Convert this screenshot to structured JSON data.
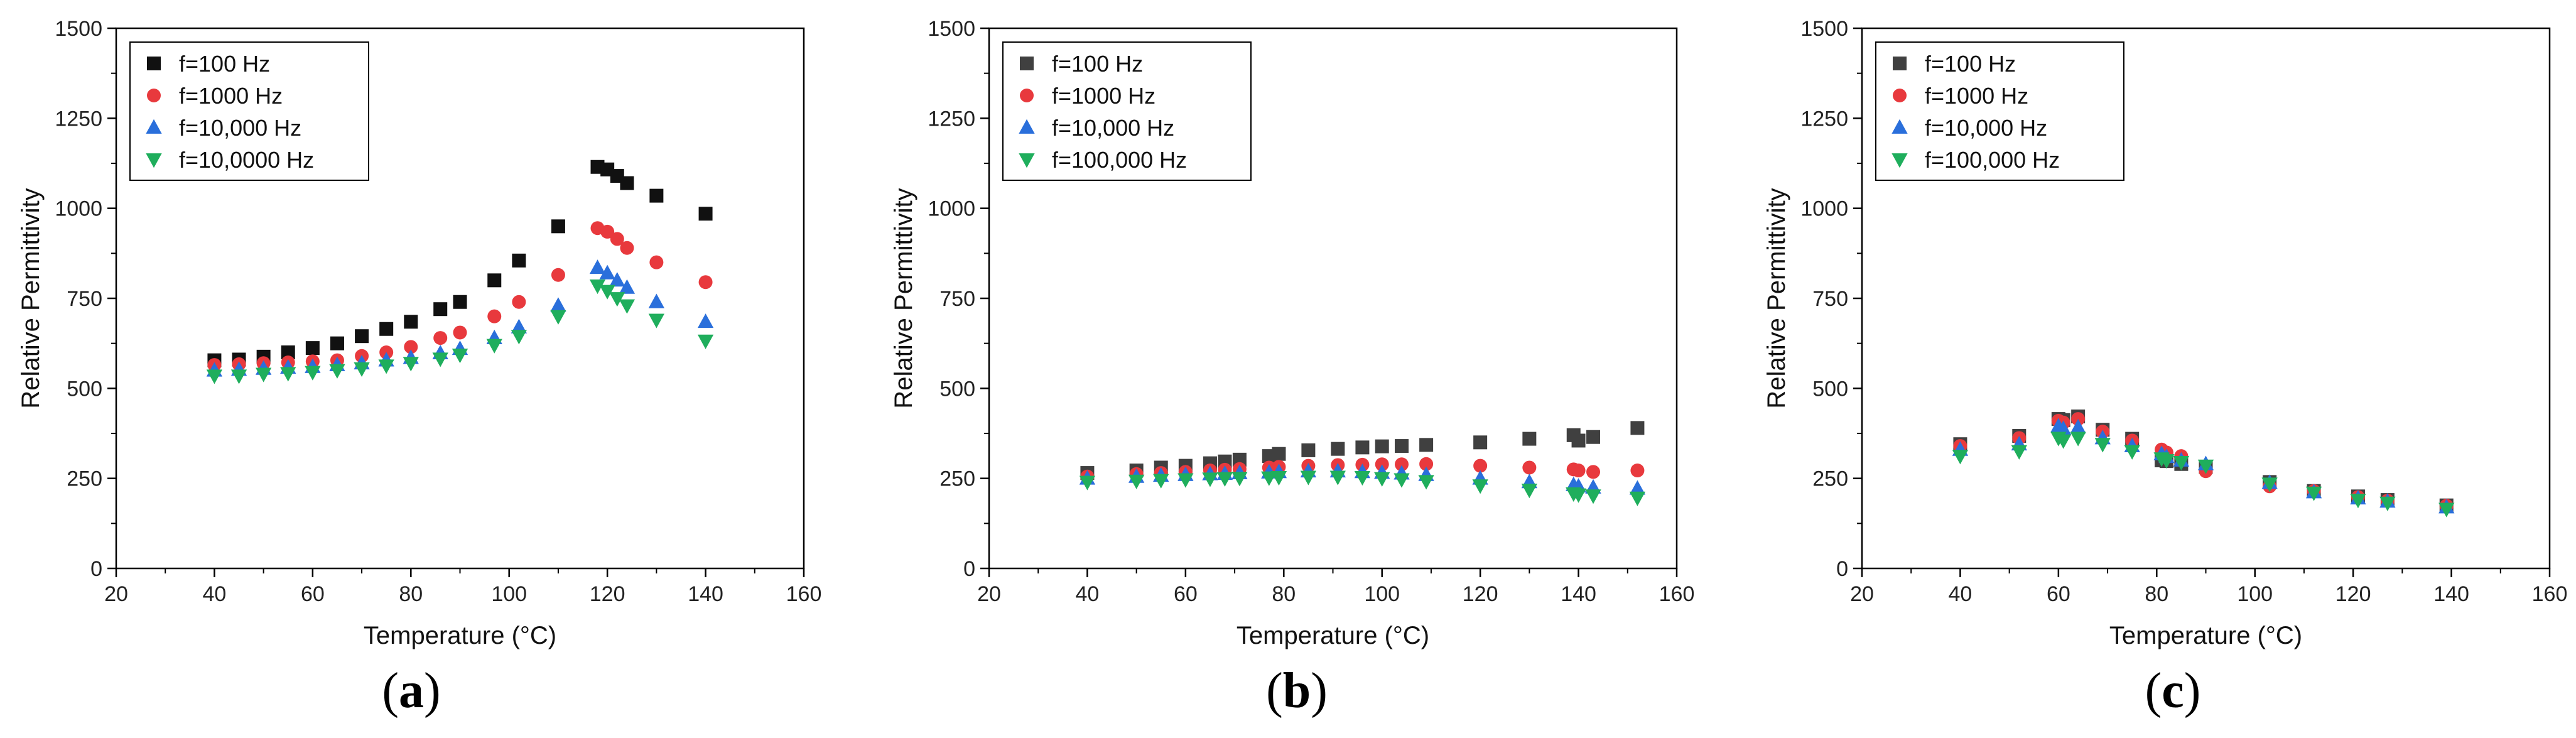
{
  "colors": {
    "black": "#111111",
    "gray": "#404040",
    "red": "#e8393d",
    "blue": "#2a6fdb",
    "green": "#1fae5c"
  },
  "chart_data": [
    {
      "type": "scatter",
      "panel_label": "a",
      "xlabel": "Temperature (°C)",
      "ylabel": "Relative Permittivity",
      "xlim": [
        20,
        160
      ],
      "ylim": [
        0,
        1500
      ],
      "xticks": [
        "20",
        "40",
        "60",
        "80",
        "100",
        "120",
        "140",
        "160"
      ],
      "yticks": [
        "0",
        "250",
        "500",
        "750",
        "1000",
        "1250",
        "1500"
      ],
      "legend_position": "top-left",
      "series": [
        {
          "name": "f=100 Hz",
          "marker": "square",
          "color": "#111111",
          "x": [
            40,
            45,
            50,
            55,
            60,
            65,
            70,
            75,
            80,
            86,
            90,
            97,
            102,
            110,
            118,
            120,
            122,
            124,
            130,
            140
          ],
          "y": [
            578,
            580,
            588,
            600,
            612,
            625,
            645,
            665,
            685,
            720,
            740,
            800,
            855,
            950,
            1115,
            1108,
            1090,
            1070,
            1035,
            985
          ]
        },
        {
          "name": "f=1000 Hz",
          "marker": "circle",
          "color": "#e8393d",
          "x": [
            40,
            45,
            50,
            55,
            60,
            65,
            70,
            75,
            80,
            86,
            90,
            97,
            102,
            110,
            118,
            120,
            122,
            124,
            130,
            140
          ],
          "y": [
            565,
            567,
            570,
            572,
            575,
            578,
            590,
            600,
            615,
            640,
            655,
            700,
            740,
            815,
            945,
            935,
            915,
            890,
            850,
            795
          ]
        },
        {
          "name": "f=10,000 Hz",
          "marker": "triangle-up",
          "color": "#2a6fdb",
          "x": [
            40,
            45,
            50,
            55,
            60,
            65,
            70,
            75,
            80,
            86,
            90,
            97,
            102,
            110,
            118,
            120,
            122,
            124,
            130,
            140
          ],
          "y": [
            550,
            552,
            555,
            558,
            560,
            565,
            570,
            578,
            585,
            598,
            610,
            640,
            670,
            730,
            835,
            820,
            800,
            780,
            740,
            685
          ]
        },
        {
          "name": "f=10,0000 Hz",
          "marker": "triangle-down",
          "color": "#1fae5c",
          "x": [
            40,
            45,
            50,
            55,
            60,
            65,
            70,
            75,
            80,
            86,
            90,
            97,
            102,
            110,
            118,
            120,
            122,
            124,
            130,
            140
          ],
          "y": [
            535,
            535,
            540,
            542,
            545,
            550,
            555,
            563,
            570,
            582,
            593,
            620,
            645,
            700,
            785,
            770,
            750,
            730,
            690,
            632
          ]
        }
      ]
    },
    {
      "type": "scatter",
      "panel_label": "b",
      "xlabel": "Temperature (°C)",
      "ylabel": "Relative Permittivity",
      "xlim": [
        20,
        160
      ],
      "ylim": [
        0,
        1500
      ],
      "xticks": [
        "20",
        "40",
        "60",
        "80",
        "100",
        "120",
        "140",
        "160"
      ],
      "yticks": [
        "0",
        "250",
        "500",
        "750",
        "1000",
        "1250",
        "1500"
      ],
      "legend_position": "top-left",
      "series": [
        {
          "name": "f=100 Hz",
          "marker": "square",
          "color": "#404040",
          "x": [
            40,
            50,
            55,
            60,
            65,
            68,
            71,
            77,
            79,
            85,
            91,
            96,
            100,
            104,
            109,
            120,
            130,
            139,
            140,
            143,
            152
          ],
          "y": [
            265,
            272,
            280,
            285,
            292,
            297,
            302,
            312,
            318,
            328,
            332,
            336,
            339,
            340,
            343,
            350,
            360,
            370,
            355,
            365,
            390
          ]
        },
        {
          "name": "f=1000 Hz",
          "marker": "circle",
          "color": "#e8393d",
          "x": [
            40,
            50,
            55,
            60,
            65,
            68,
            71,
            77,
            79,
            85,
            91,
            96,
            100,
            104,
            109,
            120,
            130,
            139,
            140,
            143,
            152
          ],
          "y": [
            255,
            262,
            265,
            268,
            272,
            274,
            276,
            280,
            282,
            285,
            287,
            288,
            289,
            289,
            290,
            285,
            280,
            275,
            272,
            268,
            272
          ]
        },
        {
          "name": "f=10,000 Hz",
          "marker": "triangle-up",
          "color": "#2a6fdb",
          "x": [
            40,
            50,
            55,
            60,
            65,
            68,
            71,
            77,
            79,
            85,
            91,
            96,
            100,
            104,
            109,
            120,
            130,
            139,
            140,
            143,
            152
          ],
          "y": [
            250,
            255,
            258,
            260,
            262,
            263,
            265,
            267,
            268,
            270,
            270,
            268,
            266,
            264,
            260,
            250,
            240,
            232,
            228,
            225,
            222
          ]
        },
        {
          "name": "f=100,000 Hz",
          "marker": "triangle-down",
          "color": "#1fae5c",
          "x": [
            40,
            50,
            55,
            60,
            65,
            68,
            71,
            77,
            79,
            85,
            91,
            96,
            100,
            104,
            109,
            120,
            130,
            139,
            140,
            143,
            152
          ],
          "y": [
            240,
            243,
            245,
            247,
            249,
            250,
            251,
            252,
            253,
            254,
            254,
            253,
            250,
            247,
            242,
            230,
            218,
            208,
            205,
            202,
            196
          ]
        }
      ]
    },
    {
      "type": "scatter",
      "panel_label": "c",
      "xlabel": "Temperature (°C)",
      "ylabel": "Relative Permittivity",
      "xlim": [
        20,
        160
      ],
      "ylim": [
        0,
        1500
      ],
      "xticks": [
        "20",
        "40",
        "60",
        "80",
        "100",
        "120",
        "140",
        "160"
      ],
      "yticks": [
        "0",
        "250",
        "500",
        "750",
        "1000",
        "1250",
        "1500"
      ],
      "legend_position": "top-left",
      "series": [
        {
          "name": "f=100 Hz",
          "marker": "square",
          "color": "#404040",
          "x": [
            40,
            52,
            60,
            61,
            64,
            69,
            75,
            81,
            82,
            85,
            90,
            103,
            112,
            121,
            127,
            139
          ],
          "y": [
            345,
            368,
            415,
            412,
            422,
            385,
            360,
            300,
            298,
            290,
            282,
            240,
            215,
            200,
            190,
            175
          ]
        },
        {
          "name": "f=1000 Hz",
          "marker": "circle",
          "color": "#e8393d",
          "x": [
            40,
            52,
            60,
            61,
            64,
            69,
            75,
            81,
            82,
            85,
            90,
            103,
            112,
            121,
            127,
            139
          ],
          "y": [
            340,
            362,
            410,
            405,
            415,
            380,
            355,
            330,
            322,
            312,
            270,
            228,
            215,
            198,
            188,
            174
          ]
        },
        {
          "name": "f=10,000 Hz",
          "marker": "triangle-up",
          "color": "#2a6fdb",
          "x": [
            40,
            52,
            60,
            61,
            64,
            69,
            75,
            81,
            82,
            85,
            90,
            103,
            112,
            121,
            127,
            139
          ],
          "y": [
            330,
            345,
            395,
            388,
            392,
            362,
            340,
            318,
            310,
            300,
            290,
            238,
            212,
            195,
            186,
            170
          ]
        },
        {
          "name": "f=100,000 Hz",
          "marker": "triangle-down",
          "color": "#1fae5c",
          "x": [
            40,
            52,
            60,
            61,
            64,
            69,
            75,
            81,
            82,
            85,
            90,
            103,
            112,
            121,
            127,
            139
          ],
          "y": [
            312,
            325,
            362,
            355,
            362,
            345,
            325,
            305,
            300,
            295,
            285,
            235,
            210,
            190,
            182,
            165
          ]
        }
      ]
    }
  ]
}
